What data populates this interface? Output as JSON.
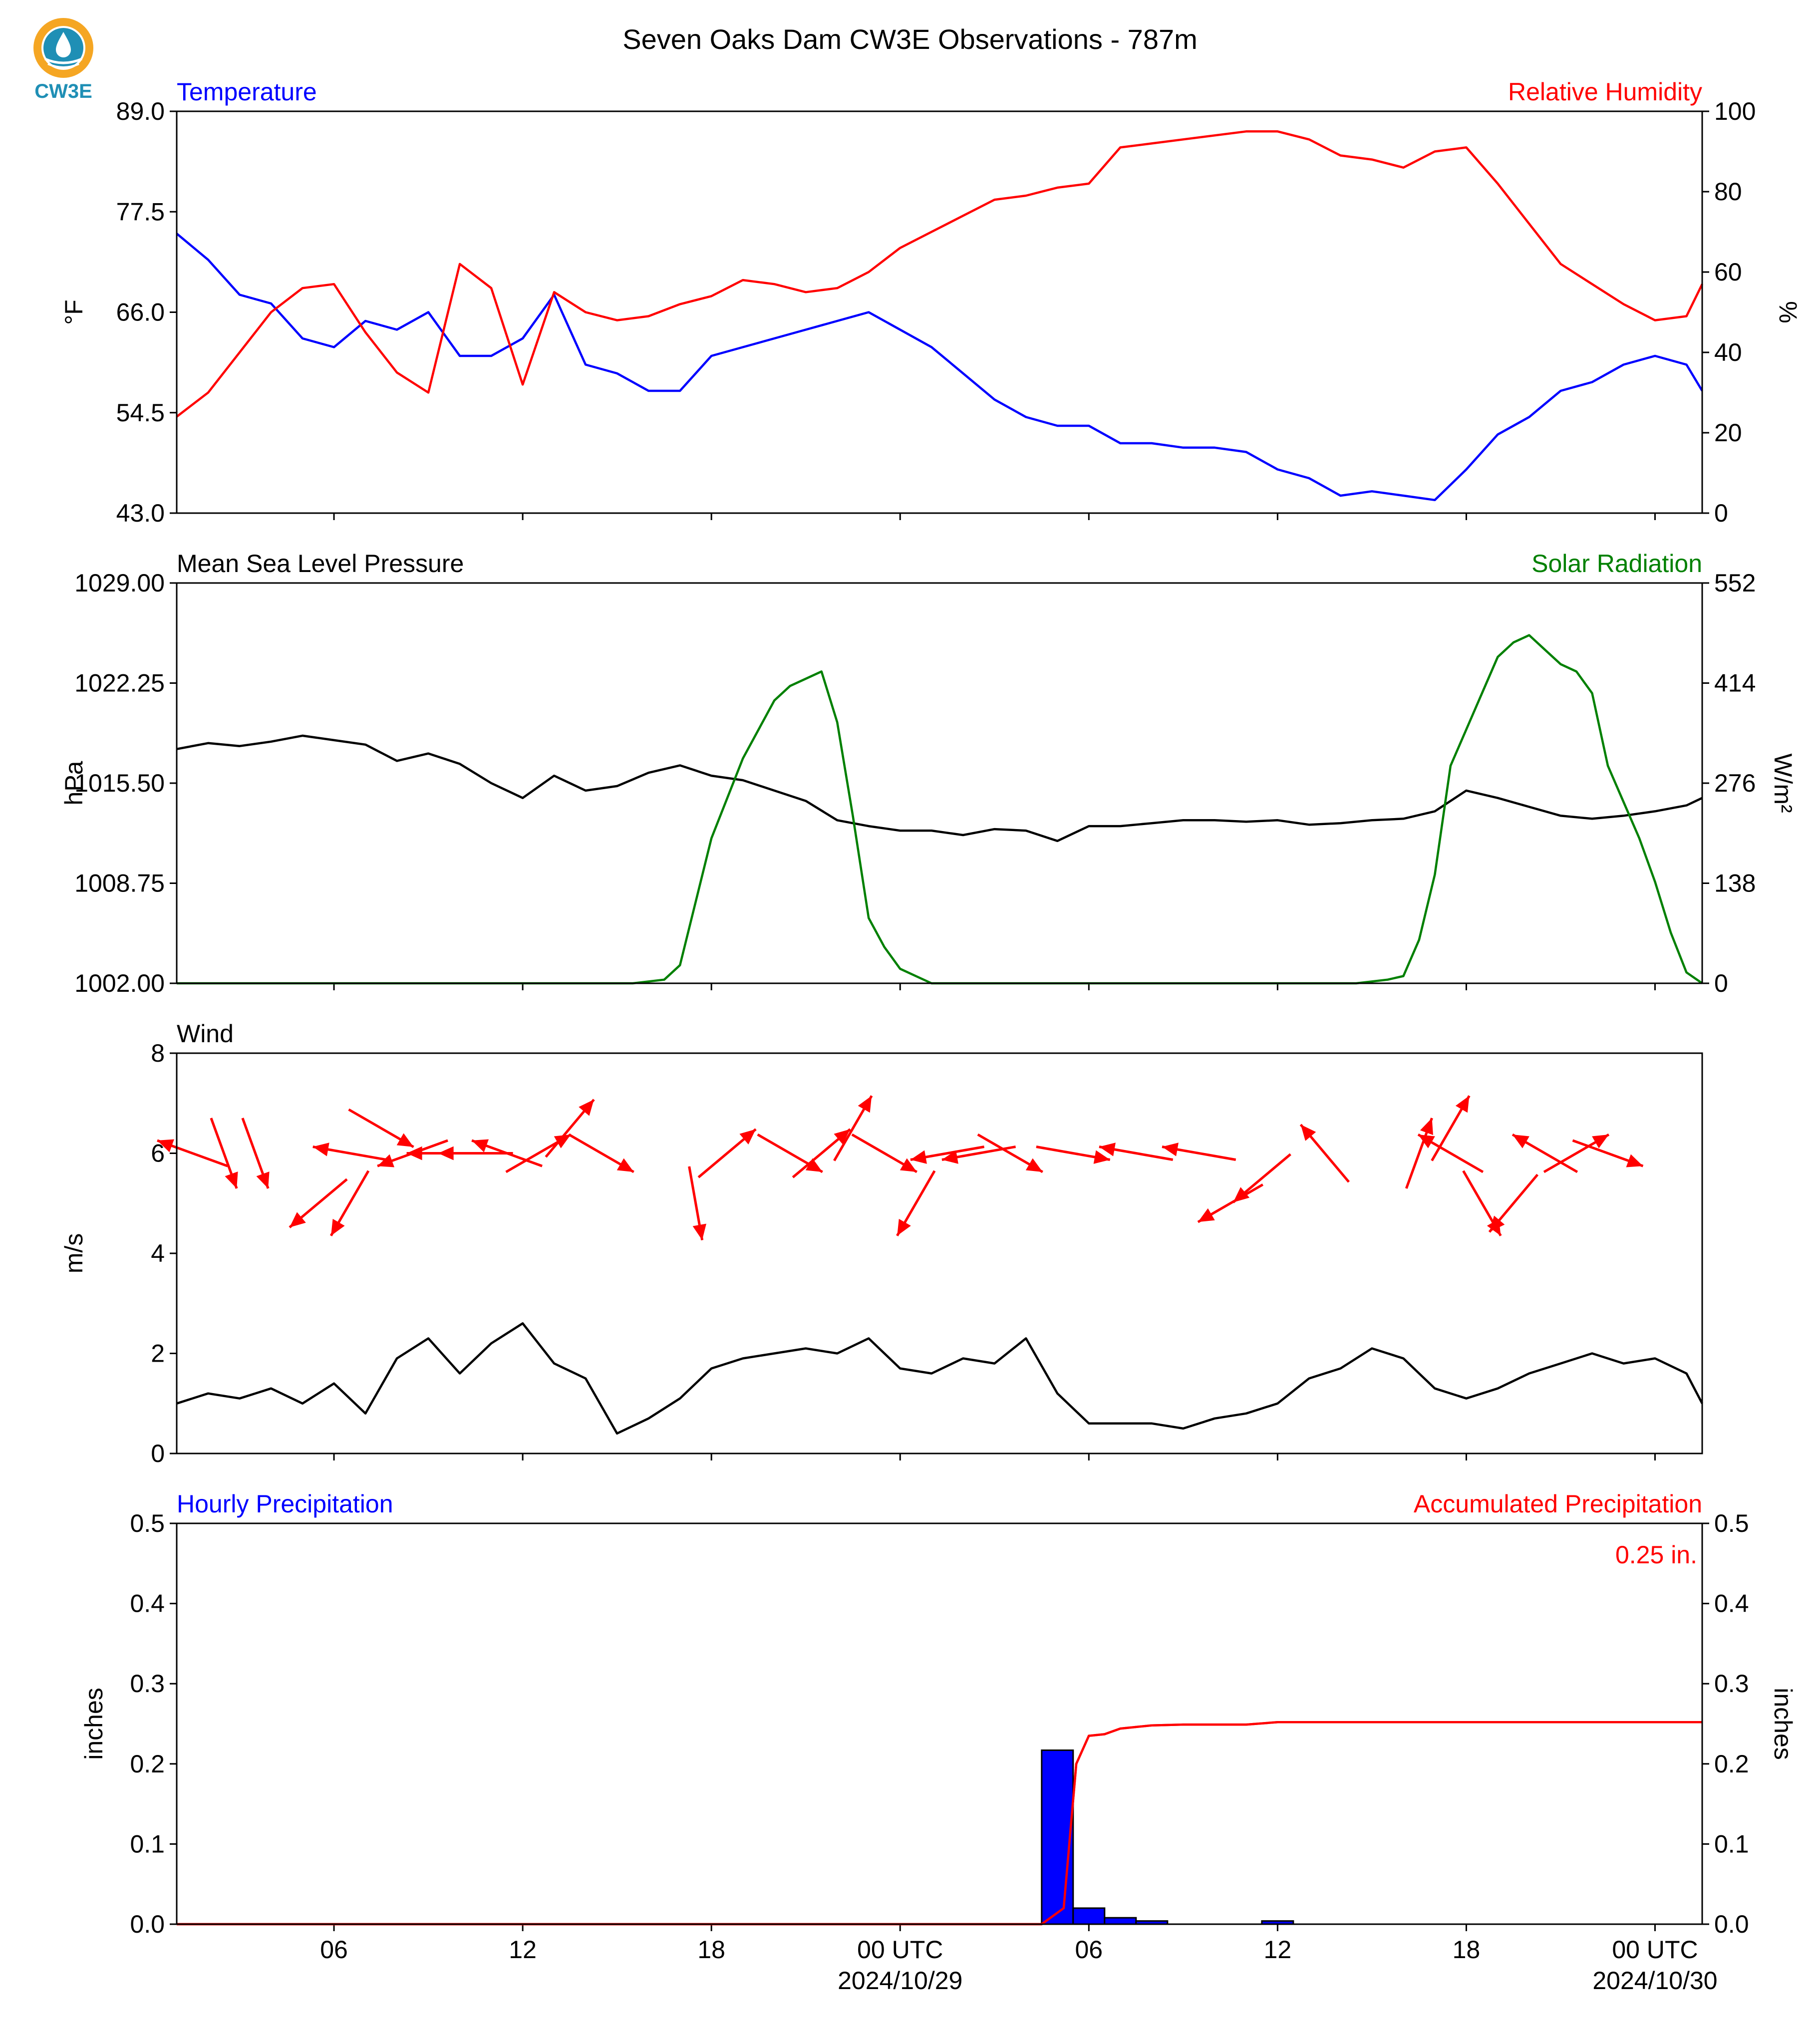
{
  "title": "Seven Oaks Dam CW3E Observations - 787m",
  "logo": {
    "text": "CW3E",
    "colors": {
      "ring": "#f5a623",
      "drop": "#1f8fb5",
      "text": "#1f8fb5"
    }
  },
  "colors": {
    "temperature": "#0000ff",
    "humidity": "#ff0000",
    "pressure": "#000000",
    "solar": "#008000",
    "wind": "#000000",
    "wind_arrows": "#ff0000",
    "hourly_precip": "#0000ff",
    "accum_precip": "#ff0000"
  },
  "x_axis": {
    "range_hours": [
      -1,
      47.5
    ],
    "ticks": [
      {
        "hour": 4,
        "label": "06",
        "sublabel": ""
      },
      {
        "hour": 10,
        "label": "12",
        "sublabel": ""
      },
      {
        "hour": 16,
        "label": "18",
        "sublabel": ""
      },
      {
        "hour": 22,
        "label": "00 UTC",
        "sublabel": "2024/10/29"
      },
      {
        "hour": 28,
        "label": "06",
        "sublabel": ""
      },
      {
        "hour": 34,
        "label": "12",
        "sublabel": ""
      },
      {
        "hour": 40,
        "label": "18",
        "sublabel": ""
      },
      {
        "hour": 46,
        "label": "00 UTC",
        "sublabel": "2024/10/30"
      }
    ]
  },
  "panels": {
    "temp_rh": {
      "left_title": "Temperature",
      "right_title": "Relative Humidity",
      "left_ylabel": "°F",
      "right_ylabel": "%",
      "left_ticks": [
        "43.0",
        "54.5",
        "66.0",
        "77.5",
        "89.0"
      ],
      "right_ticks": [
        "0",
        "20",
        "40",
        "60",
        "80",
        "100"
      ]
    },
    "pressure_solar": {
      "left_title": "Mean Sea Level Pressure",
      "right_title": "Solar Radiation",
      "left_ylabel": "hPa",
      "right_ylabel": "W/m²",
      "left_ticks": [
        "1002.00",
        "1008.75",
        "1015.50",
        "1022.25",
        "1029.00"
      ],
      "right_ticks": [
        "0",
        "138",
        "276",
        "414",
        "552"
      ]
    },
    "wind": {
      "left_title": "Wind",
      "left_ylabel": "m/s",
      "left_ticks": [
        "0",
        "2",
        "4",
        "6",
        "8"
      ]
    },
    "precip": {
      "left_title": "Hourly Precipitation",
      "right_title": "Accumulated Precipitation",
      "left_ylabel": "inches",
      "right_ylabel": "inches",
      "left_ticks": [
        "0.0",
        "0.1",
        "0.2",
        "0.3",
        "0.4",
        "0.5"
      ],
      "right_ticks": [
        "0.0",
        "0.1",
        "0.2",
        "0.3",
        "0.4",
        "0.5"
      ],
      "total_label": "0.25 in."
    }
  },
  "chart_data": [
    {
      "type": "line",
      "title": "Temperature",
      "ylabel": "°F",
      "ylim": [
        43.0,
        89.0
      ],
      "x_unit": "hours since 2024-10-28 02 UTC",
      "series": [
        {
          "name": "Temperature",
          "axis": "left",
          "x": [
            -1,
            0,
            1,
            2,
            3,
            4,
            5,
            6,
            7,
            8,
            9,
            10,
            11,
            12,
            13,
            14,
            15,
            16,
            17,
            18,
            19,
            20,
            21,
            22,
            23,
            24,
            25,
            26,
            27,
            28,
            29,
            30,
            31,
            32,
            33,
            34,
            35,
            36,
            37,
            38,
            39,
            40,
            41,
            42,
            43,
            44,
            45,
            46,
            47,
            47.5
          ],
          "y": [
            75,
            72,
            68,
            67,
            63,
            62,
            65,
            64,
            66,
            61,
            61,
            63,
            68,
            60,
            59,
            57,
            57,
            61,
            62,
            63,
            64,
            65,
            66,
            64,
            62,
            59,
            56,
            54,
            53,
            53,
            51,
            51,
            50.5,
            50.5,
            50,
            48,
            47,
            45,
            45.5,
            45,
            44.5,
            48,
            52,
            54,
            57,
            58,
            60,
            61,
            60,
            57
          ]
        },
        {
          "name": "Relative Humidity",
          "axis": "right",
          "x": [
            -1,
            0,
            1,
            2,
            3,
            4,
            5,
            6,
            7,
            8,
            9,
            10,
            11,
            12,
            13,
            14,
            15,
            16,
            17,
            18,
            19,
            20,
            21,
            22,
            23,
            24,
            25,
            26,
            27,
            28,
            29,
            30,
            31,
            32,
            33,
            34,
            35,
            36,
            37,
            38,
            39,
            40,
            41,
            42,
            43,
            44,
            45,
            46,
            47,
            47.5
          ],
          "y": [
            24,
            30,
            40,
            50,
            56,
            57,
            45,
            35,
            30,
            62,
            56,
            32,
            55,
            50,
            48,
            49,
            52,
            54,
            58,
            57,
            55,
            56,
            60,
            66,
            70,
            74,
            78,
            79,
            81,
            82,
            91,
            92,
            93,
            94,
            95,
            95,
            93,
            89,
            88,
            86,
            90,
            91,
            82,
            72,
            62,
            57,
            52,
            48,
            49,
            57
          ]
        }
      ],
      "y2label": "%",
      "y2lim": [
        0,
        100
      ]
    },
    {
      "type": "line",
      "title": "Mean Sea Level Pressure",
      "ylabel": "hPa",
      "ylim": [
        1002.0,
        1029.0
      ],
      "series": [
        {
          "name": "Mean Sea Level Pressure",
          "axis": "left",
          "x": [
            -1,
            0,
            1,
            2,
            3,
            4,
            5,
            6,
            7,
            8,
            9,
            10,
            11,
            12,
            13,
            14,
            15,
            16,
            17,
            18,
            19,
            20,
            21,
            22,
            23,
            24,
            25,
            26,
            27,
            28,
            29,
            30,
            31,
            32,
            33,
            34,
            35,
            36,
            37,
            38,
            39,
            40,
            41,
            42,
            43,
            44,
            45,
            46,
            47,
            47.5
          ],
          "y": [
            1017.8,
            1018.2,
            1018.0,
            1018.3,
            1018.7,
            1018.4,
            1018.1,
            1017.0,
            1017.5,
            1016.8,
            1015.5,
            1014.5,
            1016.0,
            1015.0,
            1015.3,
            1016.2,
            1016.7,
            1016.0,
            1015.7,
            1015.0,
            1014.3,
            1013.0,
            1012.6,
            1012.3,
            1012.3,
            1012.0,
            1012.4,
            1012.3,
            1011.6,
            1012.6,
            1012.6,
            1012.8,
            1013.0,
            1013.0,
            1012.9,
            1013.0,
            1012.7,
            1012.8,
            1013.0,
            1013.1,
            1013.6,
            1015.0,
            1014.5,
            1013.9,
            1013.3,
            1013.1,
            1013.3,
            1013.6,
            1014.0,
            1014.5
          ]
        },
        {
          "name": "Solar Radiation",
          "axis": "right",
          "x": [
            -1,
            13.5,
            14.5,
            15,
            16,
            17,
            18,
            18.5,
            19,
            19.5,
            20,
            20.5,
            21,
            21.5,
            22,
            22.5,
            23,
            23.5,
            36.5,
            37.5,
            38,
            38.5,
            39,
            39.5,
            40,
            40.5,
            41,
            41.5,
            42,
            42.5,
            43,
            43.5,
            44,
            44.5,
            45,
            45.5,
            46,
            46.5,
            47,
            47.5
          ],
          "y": [
            0,
            0,
            5,
            25,
            200,
            310,
            390,
            410,
            420,
            430,
            360,
            230,
            90,
            50,
            20,
            10,
            0,
            0,
            0,
            5,
            10,
            60,
            150,
            300,
            350,
            400,
            450,
            470,
            480,
            460,
            440,
            430,
            400,
            300,
            250,
            200,
            140,
            70,
            15,
            0
          ]
        }
      ],
      "y2label": "W/m²",
      "y2lim": [
        0,
        552
      ]
    },
    {
      "type": "line",
      "title": "Wind",
      "ylabel": "m/s",
      "ylim": [
        0,
        8
      ],
      "series": [
        {
          "name": "Wind",
          "axis": "left",
          "x": [
            -1,
            0,
            1,
            2,
            3,
            4,
            5,
            6,
            7,
            8,
            9,
            10,
            11,
            12,
            13,
            14,
            15,
            16,
            17,
            18,
            19,
            20,
            21,
            22,
            23,
            24,
            25,
            26,
            27,
            28,
            29,
            30,
            31,
            32,
            33,
            34,
            35,
            36,
            37,
            38,
            39,
            40,
            41,
            42,
            43,
            44,
            45,
            46,
            47,
            47.5
          ],
          "y": [
            1.0,
            1.2,
            1.1,
            1.3,
            1.0,
            1.4,
            0.8,
            1.9,
            2.3,
            1.6,
            2.2,
            2.6,
            1.8,
            1.5,
            0.4,
            0.7,
            1.1,
            1.7,
            1.9,
            2.0,
            2.1,
            2.0,
            2.3,
            1.7,
            1.6,
            1.9,
            1.8,
            2.3,
            1.2,
            0.6,
            0.6,
            0.6,
            0.5,
            0.7,
            0.8,
            1.0,
            1.5,
            1.7,
            2.1,
            1.9,
            1.3,
            1.1,
            1.3,
            1.6,
            1.8,
            2.0,
            1.8,
            1.9,
            1.6,
            1.0
          ]
        }
      ],
      "wind_barbs": [
        {
          "hour": -0.5,
          "speed": 6.0,
          "dir_deg": 110
        },
        {
          "hour": 0.5,
          "speed": 6.0,
          "dir_deg": 340
        },
        {
          "hour": 1.5,
          "speed": 6.0,
          "dir_deg": 340
        },
        {
          "hour": 3.5,
          "speed": 5.0,
          "dir_deg": 50
        },
        {
          "hour": 4.5,
          "speed": 5.0,
          "dir_deg": 30
        },
        {
          "hour": 4.5,
          "speed": 6.0,
          "dir_deg": 100
        },
        {
          "hour": 5.5,
          "speed": 6.5,
          "dir_deg": 300
        },
        {
          "hour": 6.5,
          "speed": 6.0,
          "dir_deg": 70
        },
        {
          "hour": 7.5,
          "speed": 6.0,
          "dir_deg": 90
        },
        {
          "hour": 8.5,
          "speed": 6.0,
          "dir_deg": 90
        },
        {
          "hour": 9.5,
          "speed": 6.0,
          "dir_deg": 110
        },
        {
          "hour": 10.5,
          "speed": 6.0,
          "dir_deg": 240
        },
        {
          "hour": 11.5,
          "speed": 6.5,
          "dir_deg": 220
        },
        {
          "hour": 12.5,
          "speed": 6.0,
          "dir_deg": 300
        },
        {
          "hour": 15.5,
          "speed": 5.0,
          "dir_deg": 350
        },
        {
          "hour": 16.5,
          "speed": 6.0,
          "dir_deg": 230
        },
        {
          "hour": 18.5,
          "speed": 6.0,
          "dir_deg": 300
        },
        {
          "hour": 19.5,
          "speed": 6.0,
          "dir_deg": 230
        },
        {
          "hour": 20.5,
          "speed": 6.5,
          "dir_deg": 210
        },
        {
          "hour": 21.5,
          "speed": 6.0,
          "dir_deg": 300
        },
        {
          "hour": 22.5,
          "speed": 5.0,
          "dir_deg": 30
        },
        {
          "hour": 23.5,
          "speed": 6.0,
          "dir_deg": 80
        },
        {
          "hour": 24.5,
          "speed": 6.0,
          "dir_deg": 80
        },
        {
          "hour": 25.5,
          "speed": 6.0,
          "dir_deg": 300
        },
        {
          "hour": 27.5,
          "speed": 6.0,
          "dir_deg": 280
        },
        {
          "hour": 29.5,
          "speed": 6.0,
          "dir_deg": 100
        },
        {
          "hour": 31.5,
          "speed": 6.0,
          "dir_deg": 100
        },
        {
          "hour": 32.5,
          "speed": 5.0,
          "dir_deg": 60
        },
        {
          "hour": 33.5,
          "speed": 5.5,
          "dir_deg": 50
        },
        {
          "hour": 35.5,
          "speed": 6.0,
          "dir_deg": 140
        },
        {
          "hour": 38.5,
          "speed": 6.0,
          "dir_deg": 200
        },
        {
          "hour": 39.5,
          "speed": 6.5,
          "dir_deg": 210
        },
        {
          "hour": 39.5,
          "speed": 6.0,
          "dir_deg": 120
        },
        {
          "hour": 40.5,
          "speed": 5.0,
          "dir_deg": 330
        },
        {
          "hour": 41.5,
          "speed": 5.0,
          "dir_deg": 40
        },
        {
          "hour": 42.5,
          "speed": 6.0,
          "dir_deg": 120
        },
        {
          "hour": 43.5,
          "speed": 6.0,
          "dir_deg": 240
        },
        {
          "hour": 44.5,
          "speed": 6.0,
          "dir_deg": 290
        }
      ]
    },
    {
      "type": "bar",
      "title": "Hourly Precipitation",
      "ylabel": "inches",
      "ylim": [
        0.0,
        0.5
      ],
      "bars": {
        "name": "Hourly Precipitation",
        "x": [
          27,
          28,
          29,
          30,
          34
        ],
        "values": [
          0.217,
          0.02,
          0.008,
          0.004,
          0.004
        ]
      },
      "series": [
        {
          "name": "Accumulated Precipitation",
          "axis": "right",
          "x": [
            -1,
            26.5,
            27.2,
            27.6,
            28.0,
            28.5,
            29,
            30,
            31,
            33,
            34,
            47.5
          ],
          "y": [
            0,
            0,
            0.02,
            0.2,
            0.235,
            0.237,
            0.244,
            0.248,
            0.249,
            0.249,
            0.252,
            0.252
          ]
        }
      ],
      "y2label": "inches",
      "y2lim": [
        0.0,
        0.5
      ]
    }
  ]
}
